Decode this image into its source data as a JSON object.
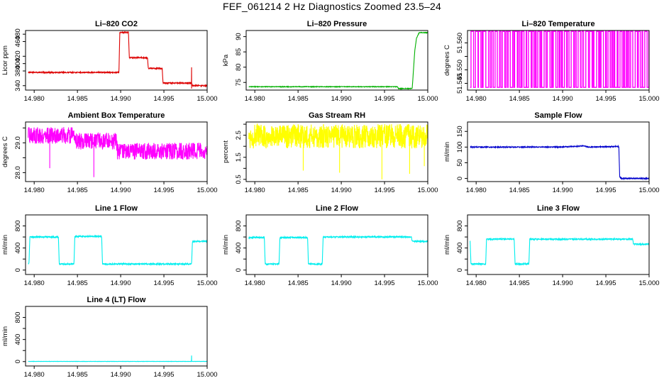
{
  "figure": {
    "title": "FEF_061214  2 Hz Diagnostics Zoomed 23.5–24"
  },
  "chart_data": [
    {
      "type": "line",
      "title": "Li–820 CO2",
      "ylabel": "Licor ppm",
      "xlim": [
        14.979,
        15.0
      ],
      "ylim": [
        328,
        490
      ],
      "yticks": [
        340,
        380,
        400,
        420,
        460,
        480
      ],
      "xticks": [
        14.98,
        14.985,
        14.99,
        14.995,
        15.0
      ],
      "xticklabels": [
        "14.980",
        "14.985",
        "14.990",
        "14.995",
        "15.000"
      ],
      "color": "#dd0000",
      "noise": 1.5,
      "series": [
        {
          "name": "CO2",
          "x": [
            14.9793,
            14.9898,
            14.9899,
            14.9909,
            14.991,
            14.9931,
            14.9932,
            14.9948,
            14.9949,
            14.9982,
            14.9983,
            15.0
          ],
          "y": [
            376,
            376,
            485,
            485,
            416,
            416,
            387,
            387,
            347,
            347,
            340,
            340
          ]
        }
      ],
      "spikes": [
        {
          "x": 14.9982,
          "y0": 332,
          "y1": 390
        }
      ]
    },
    {
      "type": "line",
      "title": "Li–820 Pressure",
      "ylabel": "kPa",
      "xlim": [
        14.979,
        15.0
      ],
      "ylim": [
        72.5,
        92
      ],
      "yticks": [
        75,
        80,
        85,
        90
      ],
      "xticks": [
        14.98,
        14.985,
        14.99,
        14.995,
        15.0
      ],
      "xticklabels": [
        "14.980",
        "14.985",
        "14.990",
        "14.995",
        "15.000"
      ],
      "color": "#00b000",
      "noise": 0.1,
      "series": [
        {
          "name": "Pressure",
          "x": [
            14.9793,
            14.9965,
            14.9966,
            14.9982,
            14.9985,
            14.9987,
            14.999,
            15.0
          ],
          "y": [
            73.6,
            73.6,
            73.0,
            73.0,
            85.5,
            89.5,
            91.3,
            91.3
          ]
        }
      ]
    },
    {
      "type": "line",
      "title": "Li–820 Temperature",
      "ylabel": "degrees C",
      "xlim": [
        14.979,
        15.0
      ],
      "ylim": [
        51.5425,
        51.5646
      ],
      "yticks": [
        51.545,
        51.55,
        51.555,
        51.56
      ],
      "ytickslabeled": [
        51.545,
        51.55,
        51.56
      ],
      "ytickformat": 3,
      "xticks": [
        14.98,
        14.985,
        14.99,
        14.995,
        15.0
      ],
      "xticklabels": [
        "14.980",
        "14.985",
        "14.990",
        "14.995",
        "15.000"
      ],
      "color": "#ff00ff",
      "toggle": {
        "low": 51.5435,
        "high": 51.5643,
        "x0": 14.9793,
        "x1": 15.0,
        "seed": 7
      }
    },
    {
      "type": "line",
      "title": "Ambient Box Temperature",
      "ylabel": "degrees C",
      "xlim": [
        14.979,
        15.0
      ],
      "ylim": [
        27.7,
        29.7
      ],
      "yticks": [
        28.0,
        28.5,
        29.0,
        29.5
      ],
      "ytickslabeled": [
        28.0,
        29.0
      ],
      "ytickformat": 1,
      "xticks": [
        14.98,
        14.985,
        14.99,
        14.995,
        15.0
      ],
      "xticklabels": [
        "14.980",
        "14.985",
        "14.990",
        "14.995",
        "15.000"
      ],
      "color": "#ff00ff",
      "noise": 0.28,
      "series": [
        {
          "name": "Ambient",
          "x": [
            14.9793,
            14.9848,
            14.9849,
            14.9895,
            14.9896,
            15.0
          ],
          "y": [
            29.25,
            29.25,
            29.05,
            29.05,
            28.72,
            28.72
          ]
        }
      ],
      "spikes": [
        {
          "x": 14.9818,
          "y0": 28.15,
          "y1": 29.2
        },
        {
          "x": 14.9869,
          "y0": 27.85,
          "y1": 29.2
        }
      ]
    },
    {
      "type": "line",
      "title": "Gas Stream RH",
      "ylabel": "percent",
      "xlim": [
        14.979,
        15.0
      ],
      "ylim": [
        0.4,
        3.1
      ],
      "yticks": [
        0.5,
        1.0,
        1.5,
        2.0,
        2.5,
        3.0
      ],
      "ytickslabeled": [
        0.5,
        1.5,
        2.5
      ],
      "ytickformat": 1,
      "xticks": [
        14.98,
        14.985,
        14.99,
        14.995,
        15.0
      ],
      "xticklabels": [
        "14.980",
        "14.985",
        "14.990",
        "14.995",
        "15.000"
      ],
      "color": "#ffff00",
      "noise": 0.55,
      "series": [
        {
          "name": "RH",
          "x": [
            14.9793,
            15.0
          ],
          "y": [
            2.45,
            2.45
          ]
        }
      ],
      "spikes": [
        {
          "x": 14.9856,
          "y0": 0.9,
          "y1": 2.3
        },
        {
          "x": 14.9898,
          "y0": 0.8,
          "y1": 2.3
        },
        {
          "x": 14.9947,
          "y0": 0.5,
          "y1": 2.3
        },
        {
          "x": 14.9979,
          "y0": 0.75,
          "y1": 2.3
        },
        {
          "x": 14.9996,
          "y0": 1.1,
          "y1": 2.3
        }
      ]
    },
    {
      "type": "line",
      "title": "Sample Flow",
      "ylabel": "ml/min",
      "xlim": [
        14.979,
        15.0
      ],
      "ylim": [
        -10,
        180
      ],
      "yticks": [
        0,
        50,
        100,
        150
      ],
      "xticks": [
        14.98,
        14.985,
        14.99,
        14.995,
        15.0
      ],
      "xticklabels": [
        "14.980",
        "14.985",
        "14.990",
        "14.995",
        "15.000"
      ],
      "color": "#0000cc",
      "noise": 1.5,
      "series": [
        {
          "name": "Sample",
          "x": [
            14.9793,
            14.9898,
            14.9925,
            14.993,
            14.9965,
            14.9966,
            14.9968,
            15.0
          ],
          "y": [
            100,
            100,
            104,
            100,
            102,
            5,
            0,
            0
          ]
        }
      ]
    },
    {
      "type": "line",
      "title": "Line 1 Flow",
      "ylabel": "ml/min",
      "xlim": [
        14.979,
        15.0
      ],
      "ylim": [
        -80,
        1000
      ],
      "yticks": [
        0,
        200,
        400,
        600,
        800
      ],
      "ytickslabeled": [
        0,
        400,
        800
      ],
      "xticks": [
        14.98,
        14.985,
        14.99,
        14.995,
        15.0
      ],
      "xticklabels": [
        "14.980",
        "14.985",
        "14.990",
        "14.995",
        "15.000"
      ],
      "color": "#00eeee",
      "noise": 12,
      "series": [
        {
          "name": "Line1",
          "x": [
            14.9793,
            14.9794,
            14.9795,
            14.9828,
            14.9829,
            14.9846,
            14.9847,
            14.9878,
            14.9879,
            14.9982,
            14.9983,
            15.0
          ],
          "y": [
            120,
            120,
            600,
            600,
            110,
            110,
            610,
            610,
            110,
            110,
            520,
            520
          ]
        }
      ]
    },
    {
      "type": "line",
      "title": "Line 2 Flow",
      "ylabel": "ml/min",
      "xlim": [
        14.979,
        15.0
      ],
      "ylim": [
        -80,
        1000
      ],
      "yticks": [
        0,
        200,
        400,
        600,
        800
      ],
      "ytickslabeled": [
        0,
        400,
        800
      ],
      "xticks": [
        14.98,
        14.985,
        14.99,
        14.995,
        15.0
      ],
      "xticklabels": [
        "14.980",
        "14.985",
        "14.990",
        "14.995",
        "15.000"
      ],
      "color": "#00eeee",
      "noise": 12,
      "series": [
        {
          "name": "Line2",
          "x": [
            14.9793,
            14.9811,
            14.9812,
            14.9828,
            14.9829,
            14.9861,
            14.9862,
            14.9878,
            14.9879,
            14.9981,
            14.9982,
            15.0
          ],
          "y": [
            590,
            590,
            110,
            110,
            590,
            590,
            110,
            110,
            600,
            600,
            520,
            520
          ]
        }
      ]
    },
    {
      "type": "line",
      "title": "Line 3 Flow",
      "ylabel": "ml/min",
      "xlim": [
        14.979,
        15.0
      ],
      "ylim": [
        -80,
        1000
      ],
      "yticks": [
        0,
        200,
        400,
        600,
        800
      ],
      "ytickslabeled": [
        0,
        400,
        800
      ],
      "xticks": [
        14.98,
        14.985,
        14.99,
        14.995,
        15.0
      ],
      "xticklabels": [
        "14.980",
        "14.985",
        "14.990",
        "14.995",
        "15.000"
      ],
      "color": "#00eeee",
      "noise": 12,
      "series": [
        {
          "name": "Line3",
          "x": [
            14.9793,
            14.9794,
            14.9795,
            14.9811,
            14.9812,
            14.9844,
            14.9845,
            14.9861,
            14.9862,
            14.9981,
            14.9982,
            15.0
          ],
          "y": [
            530,
            110,
            110,
            110,
            560,
            560,
            110,
            110,
            560,
            560,
            470,
            470
          ]
        }
      ]
    },
    {
      "type": "line",
      "title": "Line 4 (LT) Flow",
      "ylabel": "ml/min",
      "xlim": [
        14.979,
        15.0
      ],
      "ylim": [
        -80,
        1000
      ],
      "yticks": [
        0,
        200,
        400,
        600,
        800
      ],
      "ytickslabeled": [
        0,
        400,
        800
      ],
      "xticks": [
        14.98,
        14.985,
        14.99,
        14.995,
        15.0
      ],
      "xticklabels": [
        "14.980",
        "14.985",
        "14.990",
        "14.995",
        "15.000"
      ],
      "color": "#00eeee",
      "noise": 2,
      "series": [
        {
          "name": "Line4",
          "x": [
            14.9793,
            15.0
          ],
          "y": [
            3,
            3
          ]
        }
      ],
      "spikes": [
        {
          "x": 14.9982,
          "y0": 3,
          "y1": 110
        }
      ]
    }
  ]
}
